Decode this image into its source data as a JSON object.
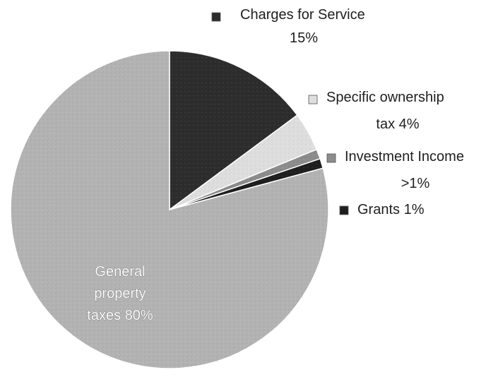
{
  "chart_data": {
    "type": "pie",
    "title": "",
    "slices": [
      {
        "key": "charges",
        "label": "Charges for Service",
        "pct_label": "15%",
        "value": 15,
        "color": "#2d2d2d",
        "text_color": "#1f1f1f"
      },
      {
        "key": "ownership",
        "label": "Specific ownership",
        "pct_label": "tax 4%",
        "value": 4,
        "color": "#dedede",
        "text_color": "#1f1f1f"
      },
      {
        "key": "investment",
        "label": "Investment Income",
        "pct_label": ">1%",
        "value": 1,
        "color": "#8c8c8c",
        "text_color": "#1f1f1f"
      },
      {
        "key": "grants",
        "label": "Grants 1%",
        "pct_label": "",
        "value": 1,
        "color": "#1e1e1e",
        "text_color": "#1f1f1f"
      },
      {
        "key": "general",
        "label": "General",
        "label_line2": "property",
        "pct_label": "taxes 80%",
        "value": 80,
        "color": "#b3b3b3",
        "text_color": "#ffffff"
      }
    ]
  }
}
